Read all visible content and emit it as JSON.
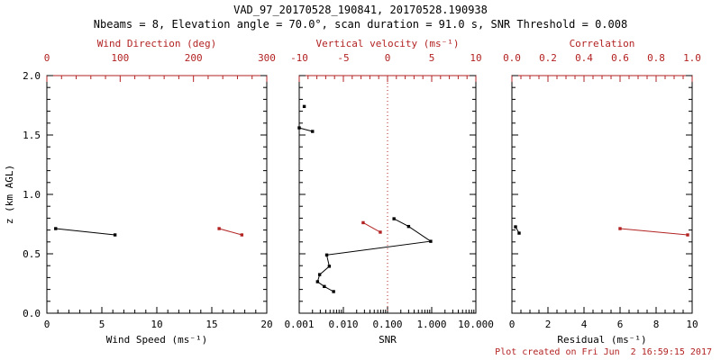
{
  "title": "VAD_97_20170528_190841, 20170528.190938",
  "subtitle": "Nbeams = 8, Elevation angle = 70.0°, scan duration = 91.0 s, SNR Threshold = 0.008",
  "footer": "Plot created on Fri Jun  2 16:59:15 2017",
  "colors": {
    "fg": "#000000",
    "bg": "#ffffff",
    "accent": "#b22222"
  },
  "chart_data": [
    {
      "name": "wind",
      "type": "scatter",
      "x_axis": {
        "label": "Wind Speed (ms⁻¹)",
        "scale": "linear",
        "lim": [
          0,
          20
        ],
        "ticks": [
          0,
          5,
          10,
          15,
          20
        ],
        "tick_labels": [
          "0",
          "5",
          "10",
          "15",
          "20"
        ],
        "minor_step": 1
      },
      "x2_axis": {
        "label": "Wind Direction (deg)",
        "scale": "linear",
        "lim": [
          0,
          300
        ],
        "ticks": [
          0,
          100,
          200,
          300
        ],
        "tick_labels": [
          "0",
          "100",
          "200",
          "300"
        ],
        "minor_step": 20
      },
      "y_axis": {
        "label": "z (km AGL)",
        "lim": [
          0,
          2
        ],
        "ticks": [
          0,
          0.5,
          1,
          1.5,
          2
        ],
        "tick_labels": [
          "0.0",
          "0.5",
          "1.0",
          "1.5",
          "2.0"
        ],
        "minor_step": 0.1,
        "show_tick_labels": true
      },
      "series": [
        {
          "name": "wind-speed",
          "axis": "x1",
          "color": "#000000",
          "segments": [
            [
              [
                0.8,
                0.712
              ],
              [
                6.2,
                0.659
              ]
            ]
          ]
        },
        {
          "name": "wind-direction",
          "axis": "x2",
          "color": "#b22222",
          "segments": [
            [
              [
                235,
                0.712
              ],
              [
                266,
                0.659
              ]
            ]
          ]
        }
      ]
    },
    {
      "name": "snr",
      "type": "scatter",
      "x_axis": {
        "label": "SNR",
        "scale": "log",
        "lim": [
          0.001,
          10
        ],
        "ticks": [
          0.001,
          0.01,
          0.1,
          1,
          10
        ],
        "tick_labels": [
          "0.001",
          "0.010",
          "0.100",
          "1.000",
          "10.000"
        ]
      },
      "x2_axis": {
        "label": "Vertical velocity (ms⁻¹)",
        "scale": "linear",
        "lim": [
          -10,
          10
        ],
        "ticks": [
          -10,
          -5,
          0,
          5,
          10
        ],
        "tick_labels": [
          "-10",
          "-5",
          "0",
          "5",
          "10"
        ],
        "minor_step": 1
      },
      "y_axis": {
        "label": "",
        "lim": [
          0,
          2
        ],
        "ticks": [
          0,
          0.5,
          1,
          1.5,
          2
        ],
        "tick_labels": [
          "0.0",
          "0.5",
          "1.0",
          "1.5",
          "2.0"
        ],
        "minor_step": 0.1,
        "show_tick_labels": false
      },
      "refline_x2": 0,
      "series": [
        {
          "name": "snr-profile",
          "axis": "x1",
          "color": "#000000",
          "segments": [
            [
              [
                0.0013,
                1.74
              ]
            ],
            [
              [
                0.001,
                1.56
              ],
              [
                0.002,
                1.53
              ]
            ],
            [
              [
                0.14,
                0.795
              ],
              [
                0.3,
                0.73
              ],
              [
                0.95,
                0.605
              ],
              [
                0.0042,
                0.49
              ],
              [
                0.0048,
                0.395
              ],
              [
                0.0029,
                0.325
              ],
              [
                0.0026,
                0.265
              ],
              [
                0.0037,
                0.225
              ],
              [
                0.006,
                0.182
              ]
            ]
          ]
        },
        {
          "name": "vertical-velocity",
          "axis": "x2",
          "color": "#b22222",
          "segments": [
            [
              [
                -2.76,
                0.762
              ],
              [
                -0.82,
                0.682
              ]
            ]
          ]
        }
      ]
    },
    {
      "name": "residual",
      "type": "scatter",
      "x_axis": {
        "label": "Residual (ms⁻¹)",
        "scale": "linear",
        "lim": [
          0,
          10
        ],
        "ticks": [
          0,
          2,
          4,
          6,
          8,
          10
        ],
        "tick_labels": [
          "0",
          "2",
          "4",
          "6",
          "8",
          "10"
        ],
        "minor_step": 0.5
      },
      "x2_axis": {
        "label": "Correlation",
        "scale": "linear",
        "lim": [
          0,
          1
        ],
        "ticks": [
          0,
          0.2,
          0.4,
          0.6,
          0.8,
          1
        ],
        "tick_labels": [
          "0.0",
          "0.2",
          "0.4",
          "0.6",
          "0.8",
          "1.0"
        ],
        "minor_step": 0.05
      },
      "y_axis": {
        "label": "",
        "lim": [
          0,
          2
        ],
        "ticks": [
          0,
          0.5,
          1,
          1.5,
          2
        ],
        "tick_labels": [
          "0.0",
          "0.5",
          "1.0",
          "1.5",
          "2.0"
        ],
        "minor_step": 0.1,
        "show_tick_labels": false
      },
      "series": [
        {
          "name": "residual",
          "axis": "x1",
          "color": "#000000",
          "segments": [
            [
              [
                0.2,
                0.727
              ],
              [
                0.4,
                0.674
              ]
            ]
          ]
        },
        {
          "name": "correlation",
          "axis": "x2",
          "color": "#b22222",
          "segments": [
            [
              [
                0.6,
                0.712
              ],
              [
                0.975,
                0.659
              ]
            ]
          ]
        }
      ]
    }
  ]
}
